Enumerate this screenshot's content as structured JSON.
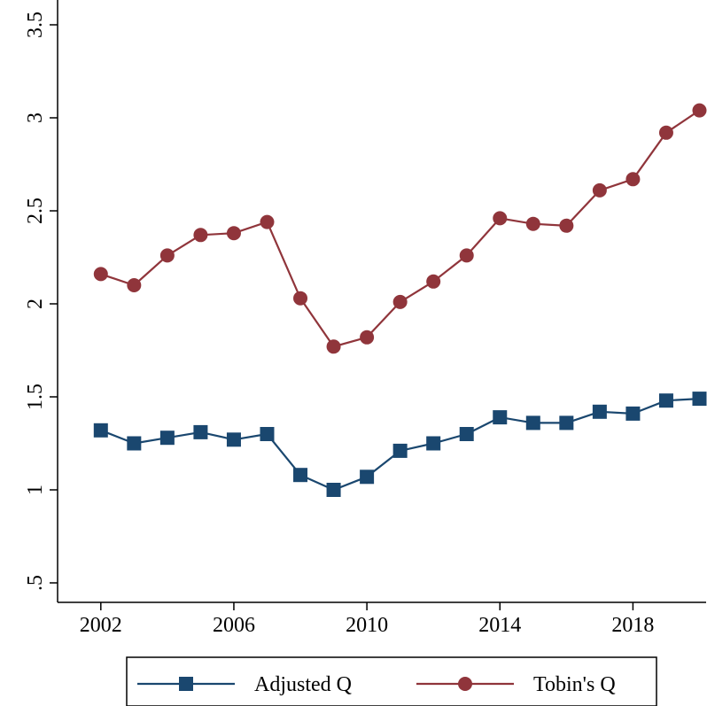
{
  "chart_data": {
    "type": "line",
    "title": "",
    "xlabel": "",
    "ylabel": "",
    "x": [
      2002,
      2003,
      2004,
      2005,
      2006,
      2007,
      2008,
      2009,
      2010,
      2011,
      2012,
      2013,
      2014,
      2015,
      2016,
      2017,
      2018,
      2019,
      2020
    ],
    "xticks": [
      2002,
      2006,
      2010,
      2014,
      2018
    ],
    "xtick_labels": [
      "2002",
      "2006",
      "2010",
      "2014",
      "2018"
    ],
    "xlim": [
      2000.7,
      2020.2
    ],
    "yticks": [
      0.5,
      1,
      1.5,
      2,
      2.5,
      3,
      3.5
    ],
    "ytick_labels": [
      ".5",
      "1",
      "1.5",
      "2",
      "2.5",
      "3",
      "3.5"
    ],
    "ylim": [
      0.5,
      3.5
    ],
    "grid": false,
    "legend_position": "bottom",
    "series": [
      {
        "name": "Adjusted Q",
        "color": "#1a476f",
        "marker": "square",
        "values": [
          1.32,
          1.25,
          1.28,
          1.31,
          1.27,
          1.3,
          1.08,
          1.0,
          1.07,
          1.21,
          1.25,
          1.3,
          1.39,
          1.36,
          1.36,
          1.42,
          1.41,
          1.48,
          1.49
        ]
      },
      {
        "name": "Tobin's Q",
        "color": "#90353b",
        "marker": "circle",
        "values": [
          2.16,
          2.1,
          2.26,
          2.37,
          2.38,
          2.44,
          2.03,
          1.77,
          1.82,
          2.01,
          2.12,
          2.26,
          2.46,
          2.43,
          2.42,
          2.61,
          2.67,
          2.92,
          3.04
        ]
      }
    ]
  }
}
